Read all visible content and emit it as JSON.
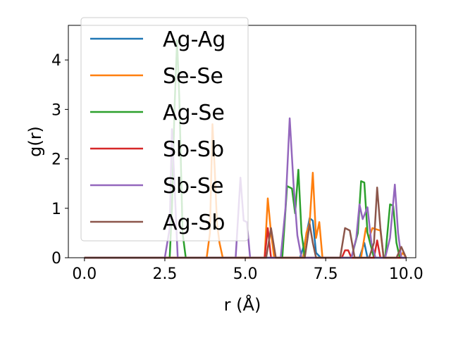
{
  "chart_data": {
    "type": "line",
    "title": "",
    "xlabel": "r (Å)",
    "ylabel": "g(r)",
    "xlim": [
      -0.5,
      10.3
    ],
    "ylim": [
      0,
      4.7
    ],
    "xticks": [
      0.0,
      2.5,
      5.0,
      7.5,
      10.0
    ],
    "xtick_labels": [
      "0.0",
      "2.5",
      "5.0",
      "7.5",
      "10.0"
    ],
    "yticks": [
      0,
      1,
      2,
      3,
      4
    ],
    "ytick_labels": [
      "0",
      "1",
      "2",
      "3",
      "4"
    ],
    "grid": false,
    "legend_position": "upper-left",
    "series": [
      {
        "name": "Ag-Ag",
        "color": "#1f77b4",
        "points": [
          [
            0,
            0
          ],
          [
            6.55,
            0
          ],
          [
            6.7,
            0.0
          ],
          [
            6.85,
            0.3
          ],
          [
            7.0,
            0.8
          ],
          [
            7.1,
            0.75
          ],
          [
            7.2,
            0.1
          ],
          [
            7.35,
            0
          ],
          [
            8.55,
            0
          ],
          [
            8.7,
            0.3
          ],
          [
            8.8,
            0
          ],
          [
            10.0,
            0
          ]
        ]
      },
      {
        "name": "Se-Se",
        "color": "#ff7f0e",
        "points": [
          [
            0,
            0
          ],
          [
            3.8,
            0
          ],
          [
            3.9,
            0.5
          ],
          [
            3.98,
            2.7
          ],
          [
            4.05,
            1.8
          ],
          [
            4.12,
            0.7
          ],
          [
            4.2,
            0.3
          ],
          [
            4.3,
            0
          ],
          [
            5.6,
            0
          ],
          [
            5.7,
            1.2
          ],
          [
            5.8,
            0.5
          ],
          [
            5.9,
            0
          ],
          [
            6.8,
            0
          ],
          [
            6.9,
            0.5
          ],
          [
            7.0,
            0.7
          ],
          [
            7.1,
            1.72
          ],
          [
            7.2,
            0.4
          ],
          [
            7.3,
            0.72
          ],
          [
            7.4,
            0
          ],
          [
            8.6,
            0
          ],
          [
            8.75,
            0.6
          ],
          [
            8.85,
            0.4
          ],
          [
            8.95,
            0.6
          ],
          [
            9.2,
            0.55
          ],
          [
            9.3,
            0
          ],
          [
            9.8,
            0
          ],
          [
            9.9,
            0.1
          ],
          [
            10.0,
            0
          ]
        ]
      },
      {
        "name": "Ag-Se",
        "color": "#2ca02c",
        "points": [
          [
            0,
            0
          ],
          [
            2.65,
            0
          ],
          [
            2.72,
            1.0
          ],
          [
            2.8,
            3.0
          ],
          [
            2.88,
            4.4
          ],
          [
            2.95,
            3.2
          ],
          [
            3.05,
            0.5
          ],
          [
            3.15,
            0
          ],
          [
            6.15,
            0
          ],
          [
            6.3,
            1.45
          ],
          [
            6.45,
            1.4
          ],
          [
            6.55,
            0.9
          ],
          [
            6.65,
            1.78
          ],
          [
            6.75,
            0.5
          ],
          [
            6.85,
            0
          ],
          [
            8.3,
            0
          ],
          [
            8.5,
            0.5
          ],
          [
            8.6,
            1.55
          ],
          [
            8.7,
            1.52
          ],
          [
            8.8,
            0.5
          ],
          [
            9.0,
            0
          ],
          [
            9.35,
            0
          ],
          [
            9.5,
            1.08
          ],
          [
            9.6,
            1.05
          ],
          [
            9.7,
            0.3
          ],
          [
            9.8,
            0
          ],
          [
            10.0,
            0
          ]
        ]
      },
      {
        "name": "Sb-Sb",
        "color": "#d62728",
        "points": [
          [
            0,
            0
          ],
          [
            5.6,
            0
          ],
          [
            5.7,
            0.6
          ],
          [
            5.8,
            0
          ],
          [
            8.0,
            0
          ],
          [
            8.1,
            0.15
          ],
          [
            8.2,
            0.15
          ],
          [
            8.3,
            0
          ],
          [
            9.0,
            0
          ],
          [
            9.1,
            0.35
          ],
          [
            9.2,
            0
          ],
          [
            10.0,
            0
          ]
        ]
      },
      {
        "name": "Sb-Se",
        "color": "#9467bd",
        "points": [
          [
            0,
            0
          ],
          [
            2.5,
            0
          ],
          [
            2.65,
            0.6
          ],
          [
            2.72,
            2.6
          ],
          [
            2.8,
            1.5
          ],
          [
            2.9,
            0
          ],
          [
            4.7,
            0
          ],
          [
            4.85,
            1.62
          ],
          [
            4.95,
            0.75
          ],
          [
            5.05,
            0.72
          ],
          [
            5.15,
            0
          ],
          [
            6.1,
            0
          ],
          [
            6.25,
            1.0
          ],
          [
            6.38,
            2.82
          ],
          [
            6.5,
            1.5
          ],
          [
            6.62,
            0.45
          ],
          [
            6.75,
            0
          ],
          [
            8.3,
            0
          ],
          [
            8.45,
            0.4
          ],
          [
            8.55,
            1.08
          ],
          [
            8.65,
            0.78
          ],
          [
            8.8,
            1.02
          ],
          [
            8.92,
            0.3
          ],
          [
            9.05,
            0
          ],
          [
            9.35,
            0
          ],
          [
            9.5,
            0.4
          ],
          [
            9.65,
            1.48
          ],
          [
            9.75,
            0.5
          ],
          [
            9.85,
            0
          ],
          [
            10.0,
            0
          ]
        ]
      },
      {
        "name": "Ag-Sb",
        "color": "#8c564b",
        "points": [
          [
            0,
            0
          ],
          [
            5.65,
            0
          ],
          [
            5.8,
            0.6
          ],
          [
            5.95,
            0
          ],
          [
            6.85,
            0
          ],
          [
            7.0,
            0.68
          ],
          [
            7.1,
            0.3
          ],
          [
            7.2,
            0
          ],
          [
            7.95,
            0
          ],
          [
            8.1,
            0.6
          ],
          [
            8.25,
            0.55
          ],
          [
            8.4,
            0
          ],
          [
            8.85,
            0
          ],
          [
            9.0,
            0.3
          ],
          [
            9.1,
            1.42
          ],
          [
            9.2,
            0.6
          ],
          [
            9.3,
            0
          ],
          [
            9.7,
            0
          ],
          [
            9.85,
            0.22
          ],
          [
            10.0,
            0
          ]
        ]
      }
    ]
  }
}
